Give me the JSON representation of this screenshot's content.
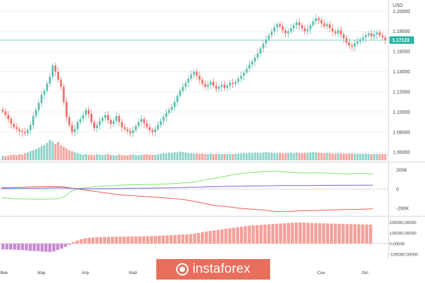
{
  "colors": {
    "up": "#5fbfae",
    "down": "#ef6f67",
    "vol_up": "#8fd3c8",
    "vol_down": "#f5a49d",
    "price_line": "#5fc6c0",
    "price_tag": "#2fb5a5",
    "grid": "#eef0f3",
    "axis_text": "#444444",
    "pane_border": "#d6d8dc",
    "green_line": "#7ee16b",
    "red_line": "#ef5a4f",
    "blue_line": "#6d67e4",
    "hist_pos": "#f4a19a",
    "hist_neg": "#c98ad6",
    "watermark_bg": "#e76f5c",
    "watermark_text": "#ffffff"
  },
  "watermark": {
    "text": "instaforex",
    "icon": "instaforex-logo-icon"
  },
  "chart_data": [
    {
      "type": "candlestick",
      "pane": "price",
      "currency_label": "USD",
      "y_ticks": [
        "1.20000",
        "1.18000",
        "1.16000",
        "1.14000",
        "1.12000",
        "1.10000",
        "1.08000",
        "1.06000"
      ],
      "ylim": [
        1.052,
        1.207
      ],
      "last_price": "1.17133",
      "x_labels": [
        "Фев",
        "Мар",
        "Апр",
        "Май",
        "Сен",
        "Окт"
      ],
      "x_label_index": [
        0,
        14,
        30,
        47,
        115,
        131
      ],
      "closes": [
        1.1005,
        1.097,
        1.093,
        1.088,
        1.085,
        1.083,
        1.081,
        1.08,
        1.079,
        1.082,
        1.087,
        1.096,
        1.102,
        1.109,
        1.117,
        1.121,
        1.128,
        1.135,
        1.146,
        1.14,
        1.132,
        1.125,
        1.11,
        1.095,
        1.087,
        1.08,
        1.083,
        1.09,
        1.093,
        1.097,
        1.102,
        1.098,
        1.09,
        1.084,
        1.087,
        1.091,
        1.094,
        1.097,
        1.092,
        1.088,
        1.091,
        1.096,
        1.09,
        1.085,
        1.083,
        1.081,
        1.079,
        1.082,
        1.086,
        1.09,
        1.093,
        1.089,
        1.085,
        1.082,
        1.08,
        1.083,
        1.087,
        1.091,
        1.095,
        1.099,
        1.102,
        1.105,
        1.11,
        1.116,
        1.121,
        1.125,
        1.129,
        1.133,
        1.137,
        1.14,
        1.136,
        1.132,
        1.128,
        1.125,
        1.127,
        1.13,
        1.126,
        1.123,
        1.125,
        1.127,
        1.124,
        1.126,
        1.129,
        1.128,
        1.13,
        1.133,
        1.136,
        1.139,
        1.143,
        1.147,
        1.15,
        1.154,
        1.158,
        1.163,
        1.168,
        1.172,
        1.176,
        1.18,
        1.184,
        1.187,
        1.185,
        1.181,
        1.178,
        1.18,
        1.183,
        1.186,
        1.189,
        1.186,
        1.183,
        1.18,
        1.182,
        1.186,
        1.19,
        1.193,
        1.191,
        1.188,
        1.185,
        1.187,
        1.183,
        1.18,
        1.178,
        1.181,
        1.177,
        1.173,
        1.169,
        1.166,
        1.165,
        1.168,
        1.17,
        1.172,
        1.174,
        1.176,
        1.178,
        1.175,
        1.177,
        1.179,
        1.176,
        1.174,
        1.17133
      ],
      "volumes": [
        0.22,
        0.2,
        0.24,
        0.26,
        0.28,
        0.25,
        0.3,
        0.28,
        0.34,
        0.38,
        0.45,
        0.5,
        0.55,
        0.62,
        0.7,
        0.75,
        0.85,
        1.0,
        0.92,
        0.8,
        0.9,
        0.72,
        0.66,
        0.58,
        0.5,
        0.45,
        0.38,
        0.35,
        0.3,
        0.28,
        0.3,
        0.26,
        0.28,
        0.25,
        0.3,
        0.27,
        0.26,
        0.28,
        0.3,
        0.26,
        0.25,
        0.24,
        0.28,
        0.26,
        0.25,
        0.24,
        0.27,
        0.28,
        0.26,
        0.25,
        0.27,
        0.28,
        0.3,
        0.28,
        0.26,
        0.27,
        0.3,
        0.32,
        0.35,
        0.34,
        0.38,
        0.36,
        0.4,
        0.38,
        0.42,
        0.4,
        0.38,
        0.36,
        0.35,
        0.34,
        0.33,
        0.32,
        0.34,
        0.3,
        0.31,
        0.33,
        0.3,
        0.32,
        0.31,
        0.3,
        0.32,
        0.3,
        0.31,
        0.3,
        0.32,
        0.33,
        0.35,
        0.36,
        0.34,
        0.37,
        0.36,
        0.38,
        0.37,
        0.36,
        0.38,
        0.4,
        0.38,
        0.37,
        0.36,
        0.35,
        0.36,
        0.34,
        0.35,
        0.36,
        0.37,
        0.35,
        0.38,
        0.36,
        0.35,
        0.37,
        0.36,
        0.38,
        0.4,
        0.38,
        0.37,
        0.36,
        0.35,
        0.37,
        0.36,
        0.34,
        0.33,
        0.35,
        0.34,
        0.33,
        0.32,
        0.33,
        0.34,
        0.32,
        0.33,
        0.31,
        0.32,
        0.33,
        0.32,
        0.3,
        0.31,
        0.32,
        0.3,
        0.31,
        0.3
      ]
    },
    {
      "type": "line",
      "pane": "indicator_1",
      "y_ticks": [
        "200K",
        "0",
        "-200K"
      ],
      "ylim": [
        -250000,
        250000
      ],
      "series": [
        {
          "color": "#7ee16b",
          "values": [
            -90000,
            -95000,
            -100000,
            -102000,
            -103000,
            -104000,
            -104000,
            -103000,
            -100000,
            -80000,
            -20000,
            5000,
            15000,
            22000,
            30000,
            34000,
            38000,
            41000,
            44000,
            46000,
            48000,
            49000,
            50000,
            52000,
            55000,
            60000,
            65000,
            70000,
            80000,
            95000,
            110000,
            120000,
            135000,
            150000,
            160000,
            170000,
            175000,
            180000,
            185000,
            188000,
            182000,
            178000,
            172000,
            168000,
            170000,
            172000,
            168000,
            164000,
            160000,
            158000,
            160000,
            162000,
            160000,
            158000
          ]
        },
        {
          "color": "#ef5a4f",
          "values": [
            15000,
            16000,
            18000,
            20000,
            22000,
            24000,
            26000,
            27000,
            25000,
            22000,
            10000,
            0,
            -10000,
            -20000,
            -30000,
            -40000,
            -50000,
            -60000,
            -65000,
            -70000,
            -75000,
            -80000,
            -85000,
            -90000,
            -95000,
            -100000,
            -110000,
            -120000,
            -135000,
            -150000,
            -165000,
            -175000,
            -180000,
            -190000,
            -200000,
            -205000,
            -210000,
            -215000,
            -225000,
            -232000,
            -234000,
            -232000,
            -228000,
            -225000,
            -223000,
            -222000,
            -220000,
            -218000,
            -215000,
            -213000,
            -212000,
            -210000,
            -208000,
            -205000
          ]
        },
        {
          "color": "#6d67e4",
          "values": [
            7000,
            7000,
            7000,
            7500,
            8000,
            9000,
            10000,
            12000,
            14000,
            12000,
            8000,
            4000,
            3000,
            3000,
            4000,
            5000,
            6000,
            7000,
            8000,
            9000,
            10000,
            11000,
            12000,
            13000,
            14000,
            15000,
            17000,
            19000,
            21000,
            23000,
            25000,
            27000,
            29000,
            30000,
            31000,
            32000,
            33000,
            34000,
            35000,
            36000,
            37000,
            38000,
            38000,
            38000,
            38000,
            39000,
            39000,
            39000,
            40000,
            40000,
            40000,
            41000,
            41000,
            41000
          ]
        }
      ]
    },
    {
      "type": "bar",
      "pane": "indicator_2",
      "y_ticks": [
        "200000.00000",
        "100000.00000",
        "0.00000",
        "-100000.00000"
      ],
      "ylim": [
        -120000,
        230000
      ],
      "values": [
        -55000,
        -56000,
        -57000,
        -58000,
        -60000,
        -62000,
        -65000,
        -68000,
        -70000,
        -72000,
        -75000,
        -78000,
        -80000,
        -74000,
        -60000,
        -48000,
        -30000,
        -10000,
        15000,
        30000,
        42000,
        50000,
        55000,
        58000,
        60000,
        62000,
        63000,
        64000,
        65000,
        66000,
        66000,
        66000,
        67000,
        67000,
        68000,
        68000,
        70000,
        70000,
        72000,
        72000,
        75000,
        76000,
        78000,
        80000,
        82000,
        84000,
        86000,
        88000,
        90000,
        95000,
        100000,
        108000,
        115000,
        120000,
        125000,
        130000,
        135000,
        140000,
        145000,
        150000,
        155000,
        160000,
        165000,
        170000,
        172000,
        175000,
        178000,
        180000,
        183000,
        185000,
        188000,
        190000,
        193000,
        195000,
        198000,
        200000,
        200000,
        198000,
        196000,
        195000,
        194000,
        193000,
        192000,
        190000,
        189000,
        188000,
        187000,
        186000,
        185000,
        184000,
        183000,
        182000,
        182000,
        181000,
        180000
      ]
    }
  ]
}
